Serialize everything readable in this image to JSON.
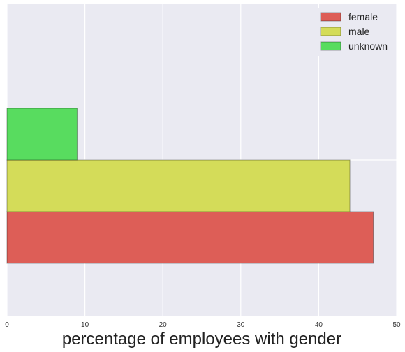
{
  "chart_data": {
    "type": "bar",
    "orientation": "horizontal",
    "xlabel": "percentage of employees with gender",
    "ylabel": "",
    "xlim": [
      0,
      50
    ],
    "xticks": [
      "0",
      "10",
      "20",
      "30",
      "40",
      "50"
    ],
    "grid": true,
    "legend_position": "top-right",
    "series": [
      {
        "name": "female",
        "value": 47,
        "color": "#dd5e57"
      },
      {
        "name": "male",
        "value": 44,
        "color": "#d4dc59"
      },
      {
        "name": "unknown",
        "value": 9,
        "color": "#58dc5f"
      }
    ]
  }
}
